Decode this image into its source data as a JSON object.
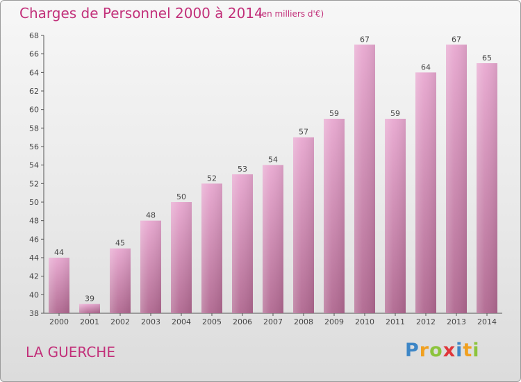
{
  "header": {
    "title": "Charges de Personnel 2000 à 2014",
    "subtitle": "(en milliers d'€)"
  },
  "location": "LA GUERCHE",
  "logo": {
    "letters": [
      "P",
      "r",
      "o",
      "x",
      "i",
      "t",
      "i"
    ]
  },
  "colors": {
    "title": "#c2307a",
    "bar_top": "#e8a8d0",
    "bar_bottom": "#b06890",
    "axis": "#555555"
  },
  "chart_data": {
    "type": "bar",
    "categories": [
      "2000",
      "2001",
      "2002",
      "2003",
      "2004",
      "2005",
      "2006",
      "2007",
      "2008",
      "2009",
      "2010",
      "2011",
      "2012",
      "2013",
      "2014"
    ],
    "values": [
      44,
      39,
      45,
      48,
      50,
      52,
      53,
      54,
      57,
      59,
      67,
      59,
      64,
      67,
      65
    ],
    "title": "Charges de Personnel 2000 à 2014",
    "subtitle": "(en milliers d'€)",
    "ylim": [
      38,
      68
    ],
    "yticks": [
      38,
      40,
      42,
      44,
      46,
      48,
      50,
      52,
      54,
      56,
      58,
      60,
      62,
      64,
      66,
      68
    ],
    "grid": false,
    "data_labels": true
  }
}
